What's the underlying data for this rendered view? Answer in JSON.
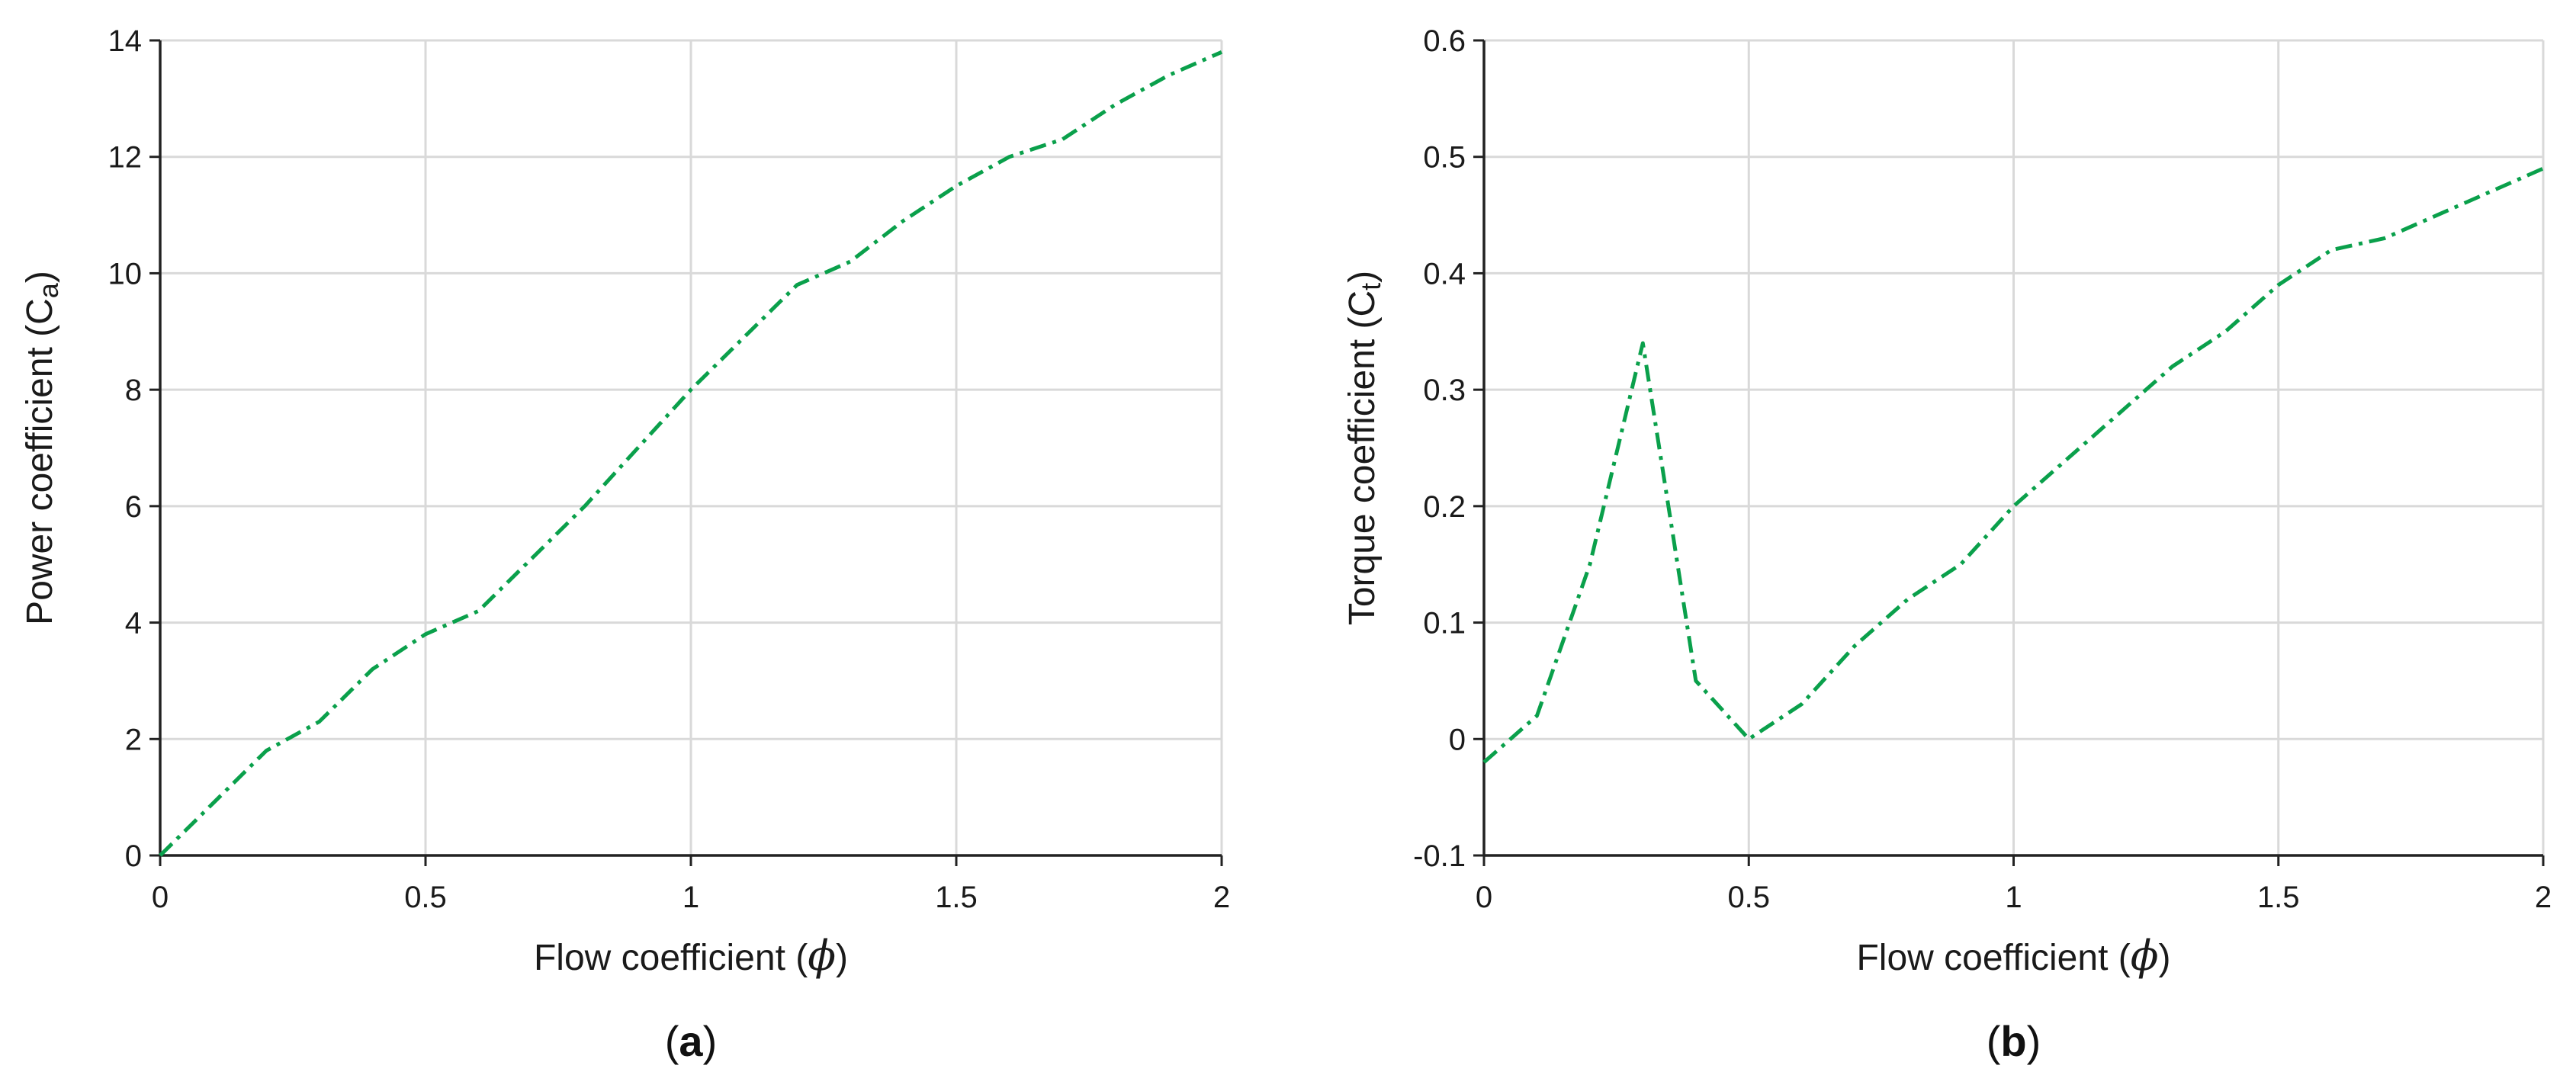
{
  "line_color": "#0aa04b",
  "chart_data": [
    {
      "type": "line",
      "ylabel_main": "Power coefficient (C",
      "ylabel_sub": "a",
      "ylabel_close": ")",
      "xlabel_main": "Flow coefficient (",
      "xlabel_symbol": "ϕ",
      "xlabel_close": ")",
      "caption_open": "(",
      "caption_letter": "a",
      "caption_close": ")",
      "xlim": [
        0,
        2
      ],
      "ylim": [
        0,
        14
      ],
      "xticks": [
        0,
        0.5,
        1,
        1.5,
        2
      ],
      "xtick_labels": [
        "0",
        "0.5",
        "1",
        "1.5",
        "2"
      ],
      "yticks": [
        0,
        2,
        4,
        6,
        8,
        10,
        12,
        14
      ],
      "ytick_labels": [
        "0",
        "2",
        "4",
        "6",
        "8",
        "10",
        "12",
        "14"
      ],
      "grid": true,
      "series": [
        {
          "line_style": "dash-dot",
          "x": [
            0,
            0.1,
            0.2,
            0.3,
            0.4,
            0.5,
            0.6,
            0.7,
            0.8,
            0.9,
            1.0,
            1.1,
            1.2,
            1.3,
            1.4,
            1.5,
            1.6,
            1.7,
            1.8,
            1.9,
            2.0
          ],
          "y": [
            0,
            0.9,
            1.8,
            2.3,
            3.2,
            3.8,
            4.2,
            5.1,
            6.0,
            7.0,
            8.0,
            8.9,
            9.8,
            10.2,
            10.9,
            11.5,
            12.0,
            12.3,
            12.9,
            13.4,
            13.8
          ]
        }
      ]
    },
    {
      "type": "line",
      "ylabel_main": "Torque coefficient (C",
      "ylabel_sub": "t",
      "ylabel_close": ")",
      "xlabel_main": "Flow coefficient (",
      "xlabel_symbol": "ϕ",
      "xlabel_close": ")",
      "caption_open": "(",
      "caption_letter": "b",
      "caption_close": ")",
      "xlim": [
        0,
        2
      ],
      "ylim": [
        -0.1,
        0.6
      ],
      "xticks": [
        0,
        0.5,
        1,
        1.5,
        2
      ],
      "xtick_labels": [
        "0",
        "0.5",
        "1",
        "1.5",
        "2"
      ],
      "yticks": [
        -0.1,
        0,
        0.1,
        0.2,
        0.3,
        0.4,
        0.5,
        0.6
      ],
      "ytick_labels": [
        "-0.1",
        "0",
        "0.1",
        "0.2",
        "0.3",
        "0.4",
        "0.5",
        "0.6"
      ],
      "grid": true,
      "series": [
        {
          "line_style": "dash-dot",
          "x": [
            0,
            0.1,
            0.2,
            0.3,
            0.4,
            0.5,
            0.6,
            0.7,
            0.8,
            0.9,
            1.0,
            1.1,
            1.2,
            1.3,
            1.4,
            1.5,
            1.6,
            1.7,
            1.8,
            1.9,
            2.0
          ],
          "y": [
            -0.02,
            0.02,
            0.15,
            0.34,
            0.05,
            0.0,
            0.03,
            0.08,
            0.12,
            0.15,
            0.2,
            0.24,
            0.28,
            0.32,
            0.35,
            0.39,
            0.42,
            0.43,
            0.45,
            0.47,
            0.49
          ]
        }
      ]
    }
  ]
}
